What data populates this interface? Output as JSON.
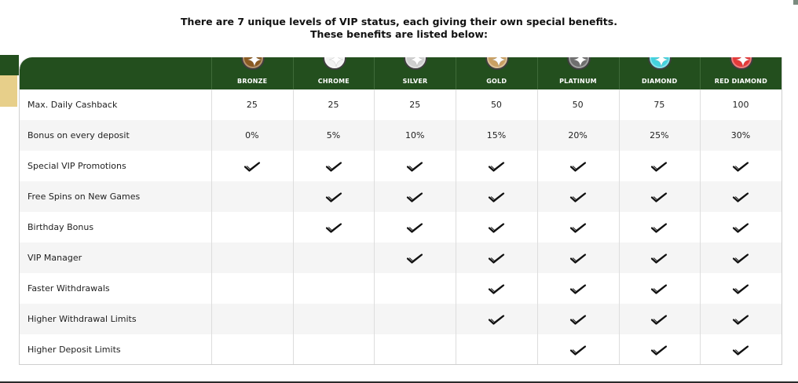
{
  "header": {
    "line1": "There are 7 unique levels of VIP status, each giving their own special benefits.",
    "line2": "These benefits are listed below:"
  },
  "tiers": [
    {
      "name": "BRONZE",
      "color": "#8a5a22"
    },
    {
      "name": "CHROME",
      "color": "#f2f2f2"
    },
    {
      "name": "SILVER",
      "color": "#cfcfcf"
    },
    {
      "name": "GOLD",
      "color": "#c9a063"
    },
    {
      "name": "PLATINUM",
      "color": "#6f6f6f"
    },
    {
      "name": "DIAMOND",
      "color": "#44d2de"
    },
    {
      "name": "RED DIAMOND",
      "color": "#e43a3a"
    }
  ],
  "rows": [
    {
      "label": "Max. Daily Cashback",
      "values": [
        "25",
        "25",
        "25",
        "50",
        "50",
        "75",
        "100"
      ]
    },
    {
      "label": "Bonus on every deposit",
      "values": [
        "0%",
        "5%",
        "10%",
        "15%",
        "20%",
        "25%",
        "30%"
      ]
    },
    {
      "label": "Special VIP Promotions",
      "checks": [
        true,
        true,
        true,
        true,
        true,
        true,
        true
      ]
    },
    {
      "label": "Free Spins on New Games",
      "checks": [
        false,
        true,
        true,
        true,
        true,
        true,
        true
      ]
    },
    {
      "label": "Birthday Bonus",
      "checks": [
        false,
        true,
        true,
        true,
        true,
        true,
        true
      ]
    },
    {
      "label": "VIP Manager",
      "checks": [
        false,
        false,
        true,
        true,
        true,
        true,
        true
      ]
    },
    {
      "label": "Faster Withdrawals",
      "checks": [
        false,
        false,
        false,
        true,
        true,
        true,
        true
      ]
    },
    {
      "label": "Higher Withdrawal Limits",
      "checks": [
        false,
        false,
        false,
        true,
        true,
        true,
        true
      ]
    },
    {
      "label": "Higher Deposit Limits",
      "checks": [
        false,
        false,
        false,
        false,
        true,
        true,
        true
      ]
    }
  ],
  "icons": {
    "check": "check-icon",
    "medal": "star-medal-icon"
  }
}
